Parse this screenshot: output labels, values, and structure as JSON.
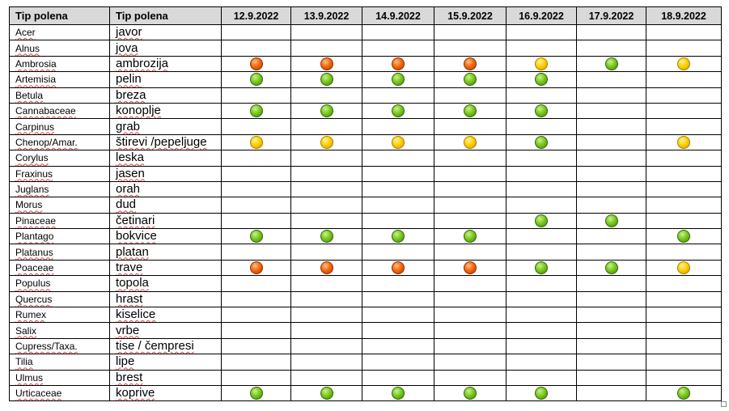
{
  "headers": [
    "Tip polena",
    "Tip polena",
    "12.9.2022",
    "13.9.2022",
    "14.9.2022",
    "15.9.2022",
    "16.9.2022",
    "17.9.2022",
    "18.9.2022"
  ],
  "rows": [
    {
      "latin": "Acer",
      "local": "javor",
      "levels": [
        "",
        "",
        "",
        "",
        "",
        "",
        ""
      ]
    },
    {
      "latin": "Alnus",
      "local": "jova",
      "levels": [
        "",
        "",
        "",
        "",
        "",
        "",
        ""
      ]
    },
    {
      "latin": "Ambrosia",
      "local": "ambrozija",
      "levels": [
        "orange",
        "orange",
        "orange",
        "orange",
        "yellow",
        "green",
        "yellow"
      ]
    },
    {
      "latin": "Artemisia",
      "local": "pelin",
      "levels": [
        "green",
        "green",
        "green",
        "green",
        "green",
        "",
        ""
      ]
    },
    {
      "latin": "Betula",
      "local": "breza",
      "levels": [
        "",
        "",
        "",
        "",
        "",
        "",
        ""
      ]
    },
    {
      "latin": "Cannabaceae",
      "local": "konoplje",
      "levels": [
        "green",
        "green",
        "green",
        "green",
        "green",
        "",
        ""
      ]
    },
    {
      "latin": "Carpinus",
      "local": "grab",
      "levels": [
        "",
        "",
        "",
        "",
        "",
        "",
        ""
      ]
    },
    {
      "latin": "Chenop/Amar.",
      "local": "štirevi /pepeljuge",
      "levels": [
        "yellow",
        "yellow",
        "yellow",
        "yellow",
        "green",
        "",
        "yellow"
      ]
    },
    {
      "latin": "Corylus",
      "local": "leska",
      "levels": [
        "",
        "",
        "",
        "",
        "",
        "",
        ""
      ]
    },
    {
      "latin": "Fraxinus",
      "local": "jasen",
      "levels": [
        "",
        "",
        "",
        "",
        "",
        "",
        ""
      ]
    },
    {
      "latin": "Juglans",
      "local": "orah",
      "levels": [
        "",
        "",
        "",
        "",
        "",
        "",
        ""
      ]
    },
    {
      "latin": "Morus",
      "local": "dud",
      "levels": [
        "",
        "",
        "",
        "",
        "",
        "",
        ""
      ]
    },
    {
      "latin": "Pinaceae",
      "local": "četinari",
      "levels": [
        "",
        "",
        "",
        "",
        "green",
        "green",
        ""
      ]
    },
    {
      "latin": "Plantago",
      "local": "bokvice",
      "levels": [
        "green",
        "green",
        "green",
        "green",
        "",
        "",
        "green"
      ]
    },
    {
      "latin": "Platanus",
      "local": "platan",
      "levels": [
        "",
        "",
        "",
        "",
        "",
        "",
        ""
      ]
    },
    {
      "latin": "Poaceae",
      "local": "trave",
      "levels": [
        "orange",
        "orange",
        "orange",
        "orange",
        "green",
        "green",
        "yellow"
      ]
    },
    {
      "latin": "Populus",
      "local": "topola",
      "levels": [
        "",
        "",
        "",
        "",
        "",
        "",
        ""
      ]
    },
    {
      "latin": "Quercus",
      "local": "hrast",
      "levels": [
        "",
        "",
        "",
        "",
        "",
        "",
        ""
      ]
    },
    {
      "latin": "Rumex",
      "local": "kiselice",
      "levels": [
        "",
        "",
        "",
        "",
        "",
        "",
        ""
      ]
    },
    {
      "latin": "Salix",
      "local": "vrbe",
      "levels": [
        "",
        "",
        "",
        "",
        "",
        "",
        ""
      ]
    },
    {
      "latin": "Cupress/Taxa.",
      "local": "tise / čempresi",
      "levels": [
        "",
        "",
        "",
        "",
        "",
        "",
        ""
      ]
    },
    {
      "latin": "Tilia",
      "local": "lipe",
      "levels": [
        "",
        "",
        "",
        "",
        "",
        "",
        ""
      ]
    },
    {
      "latin": "Ulmus",
      "local": "brest",
      "levels": [
        "",
        "",
        "",
        "",
        "",
        "",
        ""
      ]
    },
    {
      "latin": "Urticaceae",
      "local": "koprive",
      "levels": [
        "green",
        "green",
        "green",
        "green",
        "green",
        "",
        "green"
      ]
    }
  ],
  "level_colors": {
    "green": "#6cc018",
    "orange": "#f46a10",
    "yellow": "#ffd000"
  }
}
